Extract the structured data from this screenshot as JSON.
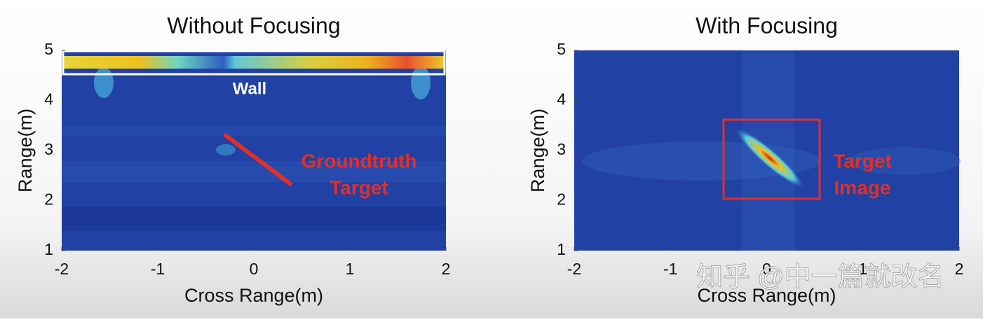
{
  "chart_data": [
    {
      "type": "heatmap",
      "title": "Without Focusing",
      "x_label": "Cross Range(m)",
      "y_label": "Range(m)",
      "xlim": [
        -2,
        2
      ],
      "xticks": [
        -2,
        -1,
        0,
        1,
        2
      ],
      "ylim": [
        1,
        5
      ],
      "yticks": [
        1,
        2,
        3,
        4,
        5
      ],
      "annotations": [
        "Wall",
        "Groundtruth",
        "Target"
      ]
    },
    {
      "type": "heatmap",
      "title": "With Focusing",
      "x_label": "Cross Range(m)",
      "y_label": "Range(m)",
      "xlim": [
        -2,
        2
      ],
      "xticks": [
        -2,
        -1,
        0,
        1,
        2
      ],
      "ylim": [
        1,
        5
      ],
      "yticks": [
        1,
        2,
        3,
        4,
        5
      ],
      "annotations": [
        "Target",
        "Image"
      ]
    }
  ],
  "watermark": "知乎 @中一篇就改名"
}
